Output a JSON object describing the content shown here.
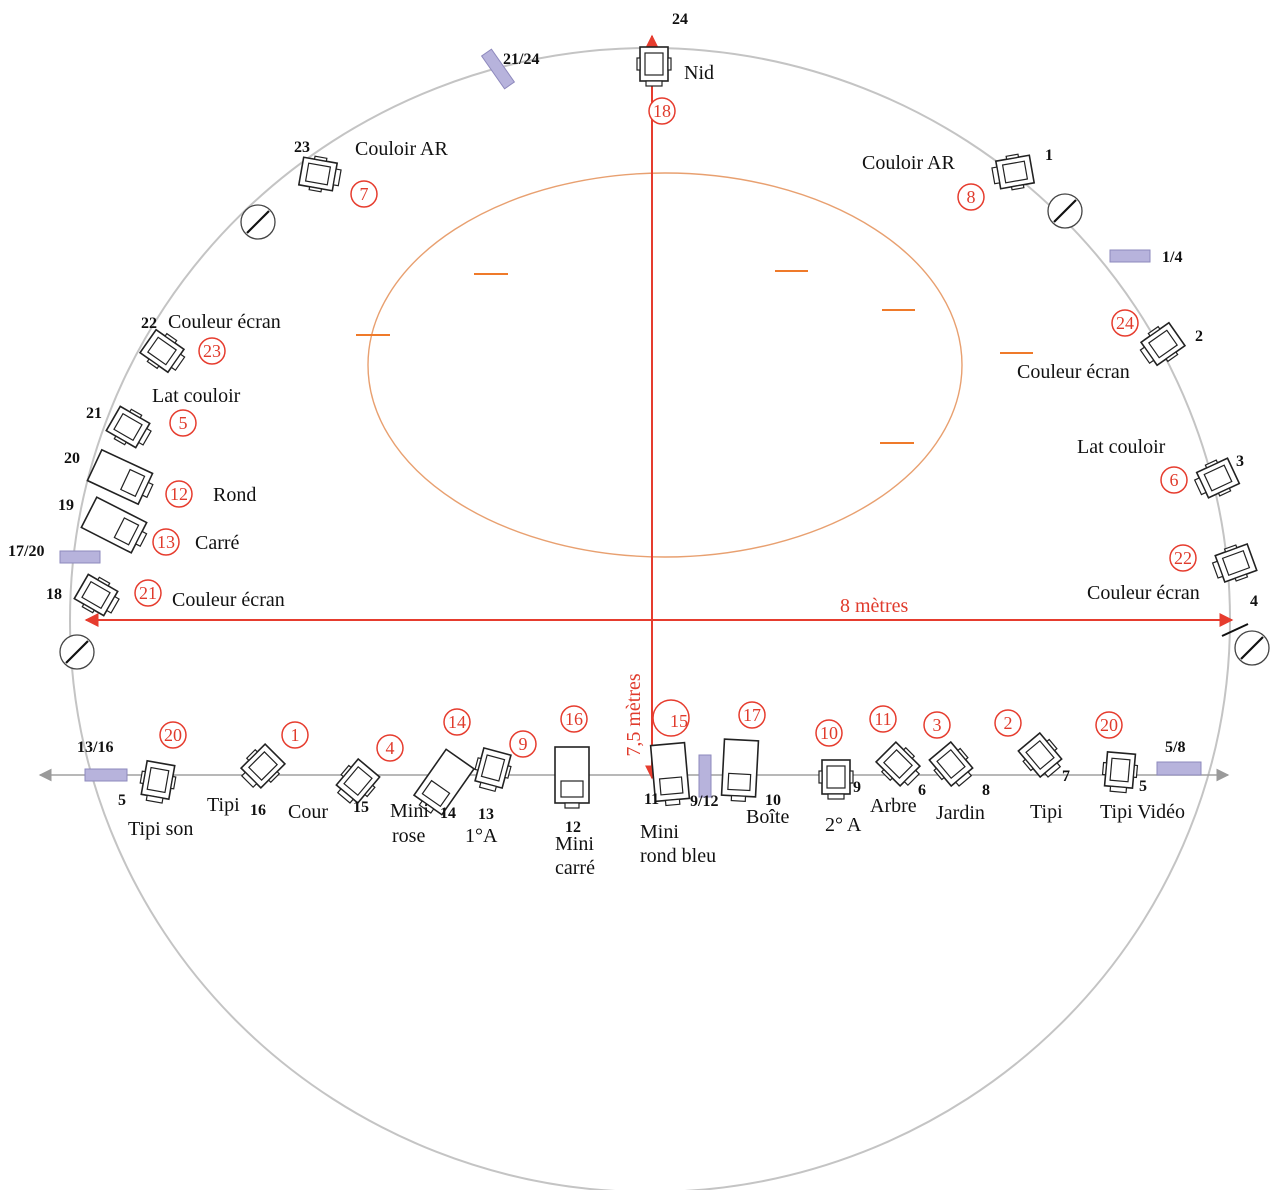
{
  "colors": {
    "circle": "#bdbdbd",
    "accent": "#e63c2e",
    "ellipse": "#e8a070",
    "dash": "#ef7a2a",
    "speaker": "#b7b3dc",
    "ink": "#222222"
  },
  "dimensions": {
    "horizontal": "8 mètres",
    "vertical": "7,5 mètres"
  },
  "speakers": {
    "s2124": "21/24",
    "s14": "1/4",
    "s1720": "17/20",
    "s1316": "13/16",
    "s58": "5/8",
    "s912": "9/12"
  },
  "units": {
    "u24": {
      "number": "24",
      "name": "Nid",
      "order": "18"
    },
    "u23": {
      "number": "23",
      "name": "Couloir AR",
      "order": "7"
    },
    "u1": {
      "number": "1",
      "name": "Couloir AR",
      "order": "8"
    },
    "u22": {
      "number": "22",
      "name": "Couleur écran",
      "order": "23"
    },
    "u21": {
      "number": "21",
      "name": "Lat couloir",
      "order": "5"
    },
    "u20": {
      "number": "20",
      "name": "Rond",
      "order": "12"
    },
    "u19": {
      "number": "19",
      "name": "Carré",
      "order": "13"
    },
    "u18": {
      "number": "18",
      "name": "Couleur écran",
      "order": "21"
    },
    "u2": {
      "number": "2",
      "name": "Couleur écran",
      "order": "24"
    },
    "u3": {
      "number": "3",
      "name": "Lat couloir",
      "order": "6"
    },
    "u4": {
      "number": "4",
      "name": "Couleur écran",
      "order": "22"
    },
    "b5": {
      "number": "5",
      "name": "Tipi son",
      "order": "20"
    },
    "b16": {
      "number": "16",
      "name": "Tipi",
      "order": "1"
    },
    "b15": {
      "number": "15",
      "name": "Cour",
      "order": "4"
    },
    "b14": {
      "number": "14",
      "name1": "Mini",
      "name2": "rose",
      "order": "14"
    },
    "b13": {
      "number": "13",
      "name": "1°A",
      "order": "9"
    },
    "b12": {
      "number": "12",
      "name1": "Mini",
      "name2": "carré",
      "order": "16"
    },
    "b11": {
      "number": "11",
      "name1": "Mini",
      "name2": "rond bleu",
      "order": "15"
    },
    "b10": {
      "number": "10",
      "name": "Boîte",
      "order": "17"
    },
    "b9": {
      "number": "9",
      "name": "2° A",
      "order": "10"
    },
    "b6": {
      "number": "6",
      "name": "Arbre",
      "order": "11"
    },
    "b8": {
      "number": "8",
      "name": "Jardin",
      "order": "3"
    },
    "b7": {
      "number": "7",
      "name": "Tipi",
      "order": "2"
    },
    "b5r": {
      "number": "5",
      "name": "Tipi Vidéo",
      "order": "20"
    }
  }
}
